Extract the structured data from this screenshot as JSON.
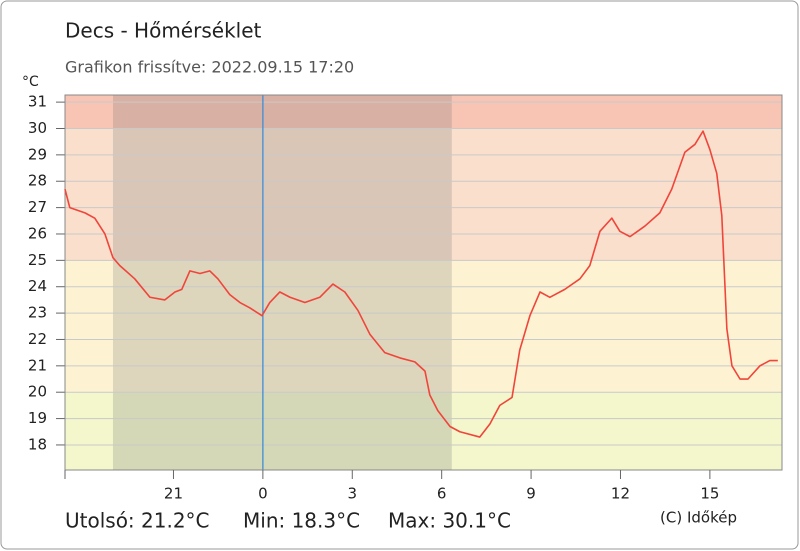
{
  "chart_data": {
    "type": "line",
    "title": "Decs - Hőmérséklet",
    "subtitle": "Grafikon frissítve: 2022.09.15 17:20",
    "y_label": "°C",
    "footer": [
      "Utolsó: 21.2°C",
      "Min: 18.3°C",
      "Max: 30.1°C"
    ],
    "credit": "(C) Időkép",
    "xlim": [
      -6.64,
      17.42
    ],
    "ylim": [
      17.05,
      31.27
    ],
    "xticks": [
      {
        "value": -3,
        "label": "21"
      },
      0,
      3,
      6,
      9,
      12,
      15
    ],
    "yticks": [
      18,
      19,
      20,
      21,
      22,
      23,
      24,
      25,
      26,
      27,
      28,
      29,
      30,
      31
    ],
    "grid": true,
    "bands": [
      {
        "from": 17.05,
        "to": 20,
        "color": "#f3f7cb"
      },
      {
        "from": 20,
        "to": 25,
        "color": "#fdf3d3"
      },
      {
        "from": 25,
        "to": 30,
        "color": "#f9dfcc"
      },
      {
        "from": 30,
        "to": 31.27,
        "color": "#f8c5b4"
      }
    ],
    "night": {
      "from": -5.03,
      "to": 6.34,
      "color": "rgba(110,110,110,0.22)"
    },
    "vline": {
      "x": 0,
      "color": "#3d8fd8"
    },
    "series": [
      {
        "name": "Hőmérséklet",
        "color": "#f0453a",
        "x": [
          -6.64,
          -6.48,
          -5.97,
          -5.64,
          -5.3,
          -5.03,
          -4.8,
          -4.3,
          -3.79,
          -3.29,
          -2.95,
          -2.72,
          -2.45,
          -2.11,
          -1.78,
          -1.51,
          -1.11,
          -0.77,
          -0.44,
          -0.03,
          0.23,
          0.57,
          0.91,
          1.41,
          1.91,
          2.35,
          2.75,
          3.19,
          3.59,
          4.09,
          4.6,
          5.1,
          5.44,
          5.6,
          5.87,
          6.28,
          6.61,
          7.28,
          7.62,
          7.95,
          8.36,
          8.62,
          8.96,
          9.3,
          9.63,
          10.13,
          10.64,
          10.97,
          11.31,
          11.71,
          11.98,
          12.32,
          12.82,
          13.32,
          13.72,
          14.16,
          14.5,
          14.77,
          15.0,
          15.23,
          15.4,
          15.57,
          15.74,
          16.01,
          16.28,
          16.68,
          17.01,
          17.28
        ],
        "values": [
          27.7,
          27.0,
          26.8,
          26.6,
          26.0,
          25.1,
          24.8,
          24.3,
          23.6,
          23.5,
          23.8,
          23.9,
          24.6,
          24.5,
          24.6,
          24.3,
          23.7,
          23.4,
          23.2,
          22.9,
          23.4,
          23.8,
          23.6,
          23.4,
          23.6,
          24.1,
          23.8,
          23.1,
          22.2,
          21.5,
          21.3,
          21.15,
          20.8,
          19.9,
          19.3,
          18.7,
          18.5,
          18.3,
          18.8,
          19.5,
          19.8,
          21.6,
          22.9,
          23.8,
          23.6,
          23.9,
          24.3,
          24.8,
          26.1,
          26.6,
          26.1,
          25.9,
          26.3,
          26.8,
          27.7,
          29.1,
          29.4,
          29.9,
          29.2,
          28.3,
          26.7,
          22.4,
          21.0,
          20.5,
          20.5,
          21.0,
          21.2,
          21.2
        ]
      }
    ]
  }
}
